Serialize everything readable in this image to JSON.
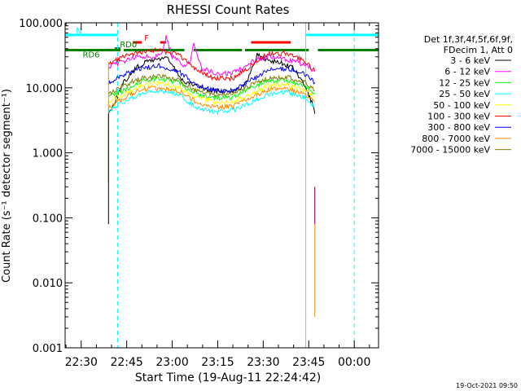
{
  "chart_data": {
    "type": "line",
    "title": "RHESSI Count Rates",
    "xlabel": "Start Time (19-Aug-11 22:24:42)",
    "ylabel": "Count Rate (s⁻¹ detector segment⁻¹)",
    "yscale": "log",
    "ylim": [
      0.001,
      100
    ],
    "xlim": [
      "22:24:42",
      "00:08"
    ],
    "x_tick_labels": [
      "22:30",
      "22:45",
      "23:00",
      "23:15",
      "23:30",
      "23:45",
      "00:00"
    ],
    "y_tick_labels": [
      "100.000",
      "10.000",
      "1.000",
      "0.100",
      "0.010",
      "0.001"
    ],
    "legend": {
      "placement": "right",
      "header_lines": [
        "Det 1f,3f,4f,5f,6f,9f,",
        "FDecim 1, Att 0"
      ]
    },
    "series": [
      {
        "name": "3 - 6 keV",
        "color": "#000000",
        "x": [
          "22:39",
          "22:41",
          "22:44",
          "22:48",
          "22:52",
          "22:56",
          "22:58",
          "23:00",
          "23:04",
          "23:08",
          "23:12",
          "23:16",
          "23:20",
          "23:24",
          "23:26",
          "23:28",
          "23:30",
          "23:33",
          "23:36",
          "23:40",
          "23:44",
          "23:46",
          "23:47"
        ],
        "y": [
          4,
          6,
          12,
          20,
          26,
          28,
          30,
          22,
          12,
          11,
          9,
          9,
          9,
          11,
          18,
          33,
          28,
          26,
          24,
          20,
          10,
          6,
          4
        ]
      },
      {
        "name": "6 - 12 keV",
        "color": "#ff00ff",
        "x": [
          "22:39",
          "22:42",
          "22:46",
          "22:50",
          "22:54",
          "22:57",
          "22:58",
          "23:00",
          "23:04",
          "23:06",
          "23:07",
          "23:10",
          "23:15",
          "23:20",
          "23:24",
          "23:28",
          "23:32",
          "23:36",
          "23:40",
          "23:44",
          "23:47"
        ],
        "y": [
          20,
          24,
          28,
          30,
          30,
          38,
          60,
          30,
          22,
          25,
          45,
          20,
          16,
          17,
          22,
          28,
          30,
          28,
          26,
          22,
          18
        ]
      },
      {
        "name": "12 - 25 keV",
        "color": "#00ff00",
        "x": [
          "22:39",
          "22:44",
          "22:50",
          "22:56",
          "23:02",
          "23:08",
          "23:14",
          "23:20",
          "23:26",
          "23:32",
          "23:38",
          "23:44",
          "23:47"
        ],
        "y": [
          7,
          9,
          13,
          14,
          12,
          8,
          7,
          7,
          10,
          13,
          13,
          10,
          8
        ]
      },
      {
        "name": "25 - 50 keV",
        "color": "#00ffff",
        "x": [
          "22:39",
          "22:44",
          "22:50",
          "22:56",
          "23:02",
          "23:08",
          "23:14",
          "23:20",
          "23:26",
          "23:32",
          "23:38",
          "23:44",
          "23:47"
        ],
        "y": [
          4.5,
          6,
          8,
          9,
          8,
          5,
          4.2,
          4.5,
          6,
          8,
          8.5,
          7,
          5
        ]
      },
      {
        "name": "50 - 100 keV",
        "color": "#ffff00",
        "x": [
          "22:39",
          "22:44",
          "22:50",
          "22:56",
          "23:02",
          "23:08",
          "23:14",
          "23:20",
          "23:26",
          "23:32",
          "23:38",
          "23:44",
          "23:47"
        ],
        "y": [
          6,
          8,
          11,
          12,
          10,
          7,
          6,
          6.2,
          8,
          11,
          11,
          9,
          7
        ]
      },
      {
        "name": "100 - 300 keV",
        "color": "#ff0000",
        "x": [
          "22:39",
          "22:44",
          "22:50",
          "22:56",
          "23:02",
          "23:08",
          "23:14",
          "23:20",
          "23:26",
          "23:32",
          "23:38",
          "23:44",
          "23:47"
        ],
        "y": [
          24,
          30,
          36,
          38,
          32,
          19,
          14,
          14,
          22,
          34,
          34,
          25,
          18
        ]
      },
      {
        "name": "300 - 800 keV",
        "color": "#0000ff",
        "x": [
          "22:39",
          "22:44",
          "22:50",
          "22:56",
          "23:02",
          "23:08",
          "23:14",
          "23:20",
          "23:26",
          "23:32",
          "23:38",
          "23:44",
          "23:47"
        ],
        "y": [
          12,
          16,
          20,
          22,
          18,
          11,
          9,
          9,
          13,
          19,
          20,
          16,
          12
        ]
      },
      {
        "name": "800 - 7000 keV",
        "color": "#ff8c00",
        "x": [
          "22:39",
          "22:44",
          "22:50",
          "22:56",
          "23:02",
          "23:08",
          "23:14",
          "23:20",
          "23:26",
          "23:32",
          "23:38",
          "23:44",
          "23:47"
        ],
        "y": [
          5,
          7,
          9.5,
          10,
          9,
          6,
          5,
          5.2,
          7,
          9.5,
          9.8,
          8,
          6
        ]
      },
      {
        "name": "7000 - 15000 keV",
        "color": "#808000",
        "x": [
          "22:39",
          "22:44",
          "22:50",
          "22:56",
          "23:02",
          "23:08",
          "23:14",
          "23:20",
          "23:26",
          "23:32",
          "23:38",
          "23:44",
          "23:47"
        ],
        "y": [
          8,
          11,
          14,
          15,
          13,
          9,
          8,
          8.2,
          11,
          14,
          14.5,
          12,
          9
        ]
      }
    ],
    "spikes": [
      {
        "x": "22:39",
        "color": "#ff8c00",
        "from": 0.35,
        "to": 25
      },
      {
        "x": "22:39",
        "color": "#000000",
        "from": 0.08,
        "to": 4
      },
      {
        "x": "23:47",
        "color": "#ff8c00",
        "from": 0.003,
        "to": 0.3
      },
      {
        "x": "23:47",
        "color": "#800080",
        "from": 0.08,
        "to": 0.3
      }
    ],
    "flags": [
      {
        "label": "N",
        "color": "#00ffff",
        "y": 65,
        "segments": [
          [
            "22:24:42",
            "22:42"
          ],
          [
            "23:44",
            "00:08"
          ]
        ]
      },
      {
        "label": "F",
        "color": "#ff0000",
        "y": 50,
        "segments": [
          [
            "22:47",
            "22:50"
          ],
          [
            "22:56",
            "22:58"
          ],
          [
            "23:26",
            "23:39"
          ]
        ]
      },
      {
        "label": "RD0",
        "color": "#008000",
        "y": 40,
        "segments": [
          [
            "22:41",
            "22:43"
          ]
        ]
      },
      {
        "label": "RD6",
        "color": "#008000",
        "y": 38,
        "segments": [
          [
            "22:24:42",
            "22:43"
          ],
          [
            "22:44",
            "23:04"
          ],
          [
            "23:07",
            "23:23"
          ],
          [
            "23:24",
            "23:45"
          ],
          [
            "23:48",
            "00:08"
          ]
        ]
      }
    ],
    "vertical_lines": [
      {
        "x": "22:24:42",
        "color": "#00ffff",
        "style": "solid"
      },
      {
        "x": "22:42",
        "color": "#00ffff",
        "style": "dashed"
      },
      {
        "x": "23:44",
        "color": "#00ffff",
        "style": "solid"
      },
      {
        "x": "00:00",
        "color": "#00ffff",
        "style": "dashed"
      }
    ],
    "grid": false
  },
  "footer_timestamp": "19-Oct-2021 09:50"
}
